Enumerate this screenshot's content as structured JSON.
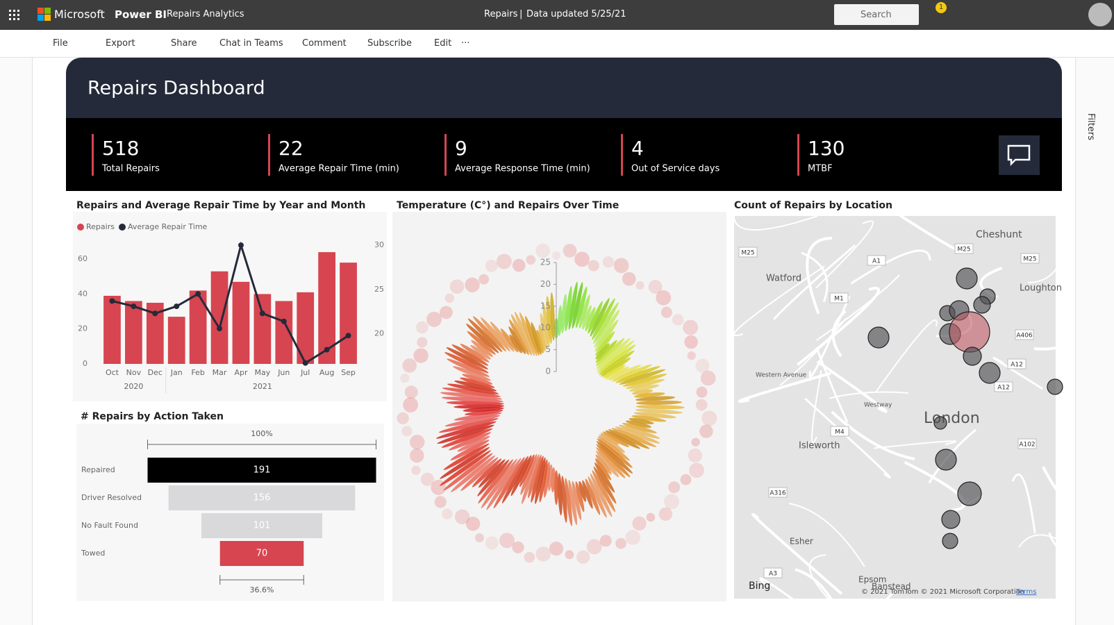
{
  "header": {
    "brand": "Microsoft",
    "product": "Power BI",
    "workspace": "Repairs Analytics",
    "report": "Repairs",
    "data_updated": "Data updated 5/25/21",
    "search": "Search",
    "notifications": "1"
  },
  "toolbar": [
    "File",
    "Export",
    "Share",
    "Chat in Teams",
    "Comment",
    "Subscribe",
    "Edit"
  ],
  "filters_pane": "Filters",
  "report": {
    "title": "Repairs Dashboard",
    "kpis": [
      {
        "value": 518,
        "label": "Total Repairs"
      },
      {
        "value": 22,
        "label": "Average Repair Time (min)"
      },
      {
        "value": 9,
        "label": "Average Response Time (min)"
      },
      {
        "value": 4,
        "label": "Out of Service days"
      },
      {
        "value": 130,
        "label": "MTBF"
      }
    ]
  },
  "chart_data": [
    {
      "type": "combo",
      "title": "Repairs and Average Repair Time by Year and Month",
      "categories": [
        "Oct",
        "Nov",
        "Dec",
        "Jan",
        "Feb",
        "Mar",
        "Apr",
        "May",
        "Jun",
        "Jul",
        "Aug",
        "Sep"
      ],
      "years": [
        "2020",
        "2020",
        "2020",
        "2021",
        "2021",
        "2021",
        "2021",
        "2021",
        "2021",
        "2021",
        "2021",
        "2021"
      ],
      "series": [
        {
          "name": "Repairs",
          "color": "#d64550",
          "values": [
            39,
            36,
            35,
            27,
            42,
            53,
            47,
            40,
            36,
            41,
            64,
            58
          ]
        },
        {
          "name": "Average Repair Time",
          "color": "#252a3a",
          "axis": "y2",
          "values": [
            23.7,
            23.1,
            22.3,
            23.1,
            24.5,
            20.6,
            30,
            22.3,
            21.4,
            16.7,
            18.2,
            19.8
          ]
        }
      ],
      "ylim": [
        0,
        70
      ],
      "yticks": [
        0,
        20,
        40,
        60
      ],
      "y2lim": [
        16.6,
        30.4
      ],
      "y2ticks": [
        20,
        25,
        30
      ]
    },
    {
      "type": "funnel",
      "title": "# Repairs by Action Taken",
      "categories": [
        "Repaired",
        "Driver Resolved",
        "No Fault Found",
        "Towed"
      ],
      "values": [
        191,
        156,
        101,
        70
      ],
      "colors": [
        "#000000",
        "#d9d9dc",
        "#d9d9dc",
        "#d64550"
      ],
      "top_percent": {
        "value": 100,
        "label": "100%"
      },
      "bottom_percent": {
        "value": 36.6,
        "label": "36.6%"
      }
    },
    {
      "type": "radial",
      "title": "Temperature (C°) and Repairs Over Time",
      "ylim": [
        0,
        25
      ],
      "yticks": [
        0,
        5,
        10,
        15,
        20,
        25
      ]
    }
  ],
  "map": {
    "title": "Count of Repairs by Location",
    "places": [
      "Cheshunt",
      "Watford",
      "Loughton",
      "London",
      "Isleworth",
      "Esher",
      "Epsom",
      "Banstead",
      "Western Avenue",
      "Westway"
    ],
    "roads": [
      "M25",
      "M25",
      "M25",
      "A1",
      "M1",
      "A406",
      "A12",
      "A12",
      "M4",
      "A316",
      "A102",
      "A3"
    ],
    "attribution": "© 2021 TomTom  © 2021 Microsoft Corporation",
    "terms": "Terms",
    "provider": "Bing"
  }
}
